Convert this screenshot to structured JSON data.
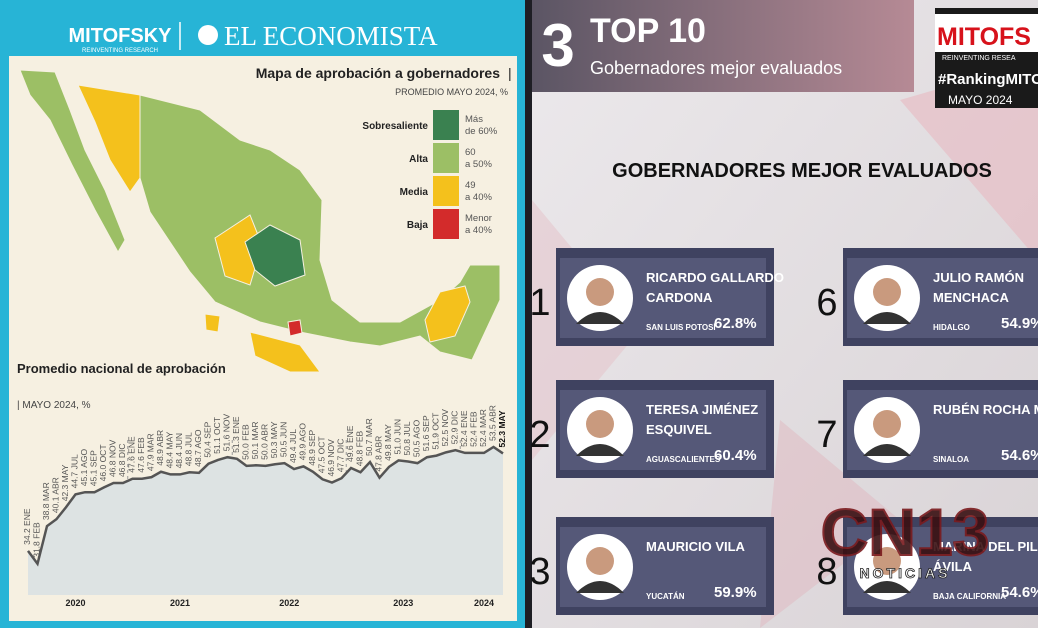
{
  "header": {
    "logo": "MITOFSKY",
    "logo_sub": "REINVENTING RESEARCH",
    "paper": "EL ECONOMISTA"
  },
  "map": {
    "title": "Mapa de aprobación a gobernadores",
    "subtitle": "PROMEDIO MAYO 2024, %",
    "legend": [
      {
        "label": "Sobresaliente",
        "range": [
          "Más",
          "de 60%"
        ],
        "color": "#3a8150"
      },
      {
        "label": "Alta",
        "range": [
          "60",
          "a 50%"
        ],
        "color": "#9cbf65"
      },
      {
        "label": "Media",
        "range": [
          "49",
          "a 40%"
        ],
        "color": "#f4c11c"
      },
      {
        "label": "Baja",
        "range": [
          "Menor",
          "a 40%"
        ],
        "color": "#d32b2b"
      }
    ]
  },
  "chart_data": {
    "type": "line",
    "title": "Promedio nacional de aprobación",
    "subtitle": "| MAYO 2024, %",
    "categories": [
      "ENE",
      "FEB",
      "MAR",
      "ABR",
      "MAY",
      "JUL",
      "AGO",
      "SEP",
      "OCT",
      "NOV",
      "DIC",
      "ENE",
      "FEB",
      "MAR",
      "ABR",
      "MAY",
      "JUN",
      "JUL",
      "AGO",
      "SEP",
      "OCT",
      "NOV",
      "ENE",
      "FEB",
      "MAR",
      "ABR",
      "MAY",
      "JUN",
      "JUL",
      "AGO",
      "SEP",
      "OCT",
      "NOV",
      "DIC",
      "ENE",
      "FEB",
      "MAR",
      "ABR",
      "MAY",
      "JUN",
      "JUL",
      "AGO",
      "SEP",
      "OCT",
      "NOV",
      "DIC",
      "ENE",
      "FEB",
      "MAR",
      "ABR",
      "MAY"
    ],
    "values": [
      34.2,
      31.8,
      38.8,
      40.1,
      42.3,
      44.7,
      45.1,
      45.1,
      46.0,
      46.8,
      46.8,
      47.6,
      47.6,
      47.9,
      48.9,
      48.4,
      48.4,
      48.8,
      48.7,
      50.4,
      51.1,
      51.6,
      51.3,
      50.0,
      50.1,
      50.0,
      50.3,
      50.5,
      49.4,
      49.9,
      48.9,
      47.5,
      46.9,
      47.7,
      49.6,
      48.8,
      50.7,
      47.8,
      49.8,
      51.0,
      50.8,
      50.5,
      51.6,
      51.9,
      52.5,
      52.9,
      52.4,
      52.4,
      52.4,
      53.5,
      52.3
    ],
    "value_labels": [
      "34.2",
      "31.8",
      "38.8",
      "40.1",
      "42.3",
      "44.7",
      "45.1",
      "45.1",
      "46.0",
      "46.8",
      "46.8",
      "47.6",
      "47.6",
      "47.9",
      "48.9",
      "48.4",
      "48.4",
      "48.8",
      "48.7",
      "50.4",
      "51.1",
      "51.6",
      "51.3",
      "50.0",
      "50.1",
      "50.0",
      "50.3",
      "50.5",
      "49.4",
      "49.9",
      "48.9",
      "47.5",
      "46.9",
      "47.7",
      "49.6",
      "48.8",
      "50.7",
      "47.8",
      "49.8",
      "51.0",
      "50.8",
      "50.5",
      "51.6",
      "51.9",
      "52.5",
      "52.9",
      "52.4",
      "52.4",
      "52.4",
      "53.5",
      "52.3"
    ],
    "years": [
      "2020",
      "2021",
      "2022",
      "2023",
      "2024"
    ],
    "color": "#555555",
    "ylim": [
      26,
      60
    ],
    "grid": false
  },
  "ranking": {
    "number": "3",
    "title": "TOP 10",
    "subtitle": "Gobernadores mejor evaluados",
    "brand": "MITOFS",
    "brand_sub": "REINVENTING RESEA",
    "hashtag": "#RankingMITOF",
    "date": "MAYO 2024",
    "heading": "GOBERNADORES MEJOR EVALUADOS",
    "items": [
      {
        "rank": "1",
        "name": [
          "RICARDO GALLARDO",
          "CARDONA"
        ],
        "state": "SAN LUIS POTOSÍ",
        "score": "62.8%"
      },
      {
        "rank": "2",
        "name": [
          "TERESA JIMÉNEZ",
          "ESQUIVEL"
        ],
        "state": "AGUASCALIENTES",
        "score": "60.4%"
      },
      {
        "rank": "3",
        "name": [
          "MAURICIO VILA"
        ],
        "state": "YUCATÁN",
        "score": "59.9%"
      },
      {
        "rank": "6",
        "name": [
          "JULIO RAMÓN",
          "MENCHACA"
        ],
        "state": "HIDALGO",
        "score": "54.9%"
      },
      {
        "rank": "7",
        "name": [
          "RUBÉN ROCHA MOY"
        ],
        "state": "SINALOA",
        "score": "54.6%"
      },
      {
        "rank": "8",
        "name": [
          "MARINA DEL PILAR",
          "ÁVILA"
        ],
        "state": "BAJA CALIFORNIA",
        "score": "54.6%"
      }
    ],
    "watermark": "CN13",
    "watermark_sub": "NOTICIAS"
  }
}
